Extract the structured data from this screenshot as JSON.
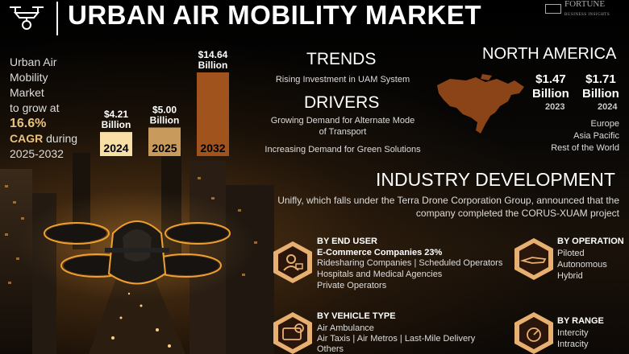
{
  "header": {
    "title": "URBAN AIR MOBILITY MARKET",
    "brand_name": "FORTUNE",
    "brand_sub": "BUSINESS INSIGHTS"
  },
  "growth": {
    "line1": "Urban Air",
    "line2": "Mobility",
    "line3": "Market",
    "line4": "to grow at",
    "cagr_value": "16.6%",
    "cagr_word": "CAGR",
    "line_during": "during",
    "period": "2025-2032"
  },
  "chart_data": {
    "type": "bar",
    "categories": [
      "2024",
      "2025",
      "2032"
    ],
    "values": [
      4.21,
      5.0,
      14.64
    ],
    "value_labels": [
      [
        "$4.21",
        "Billion"
      ],
      [
        "$5.00",
        "Billion"
      ],
      [
        "$14.64",
        "Billion"
      ]
    ],
    "units": "USD Billion",
    "colors": [
      "#f7dfa6",
      "#c89a5c",
      "#a0531c"
    ],
    "ylim": [
      0,
      14.64
    ]
  },
  "trends": {
    "title": "TRENDS",
    "item": "Rising Investment in UAM System"
  },
  "drivers": {
    "title": "DRIVERS",
    "item1_line1": "Growing Demand for Alternate Mode",
    "item1_line2": "of Transport",
    "item2": "Increasing Demand for Green Solutions"
  },
  "north_america": {
    "title": "NORTH AMERICA",
    "val1_amount": "$1.47",
    "val1_unit": "Billion",
    "val1_year": "2023",
    "val2_amount": "$1.71",
    "val2_unit": "Billion",
    "val2_year": "2024",
    "map_color": "#8a4418"
  },
  "regions": [
    "Europe",
    "Asia Pacific",
    "Rest of the World"
  ],
  "industry": {
    "title": "INDUSTRY DEVELOPMENT",
    "line1": "Unifly, which falls under the Terra Drone Corporation Group, announced that the",
    "line2": "company completed the CORUS-XUAM project"
  },
  "segments": {
    "end_user": {
      "title": "BY END USER",
      "highlight": "E-Commerce Companies 23%",
      "row2": "Ridesharing Companies  |  Scheduled Operators",
      "row3": "Hospitals and Medical Agencies",
      "row4": "Private Operators"
    },
    "operation": {
      "title": "BY OPERATION",
      "items": [
        "Piloted",
        "Autonomous",
        "Hybrid"
      ]
    },
    "vehicle_type": {
      "title": "BY VEHICLE TYPE",
      "row1": "Air Ambulance",
      "row2": "Air Taxis  |  Air Metros  |  Last-Mile Delivery",
      "row3": "Others"
    },
    "range": {
      "title": "BY RANGE",
      "items": [
        "Intercity",
        "Intracity"
      ]
    }
  },
  "icons": {
    "hex_color": "#e8b070",
    "hex_inner": "#2a160a"
  }
}
